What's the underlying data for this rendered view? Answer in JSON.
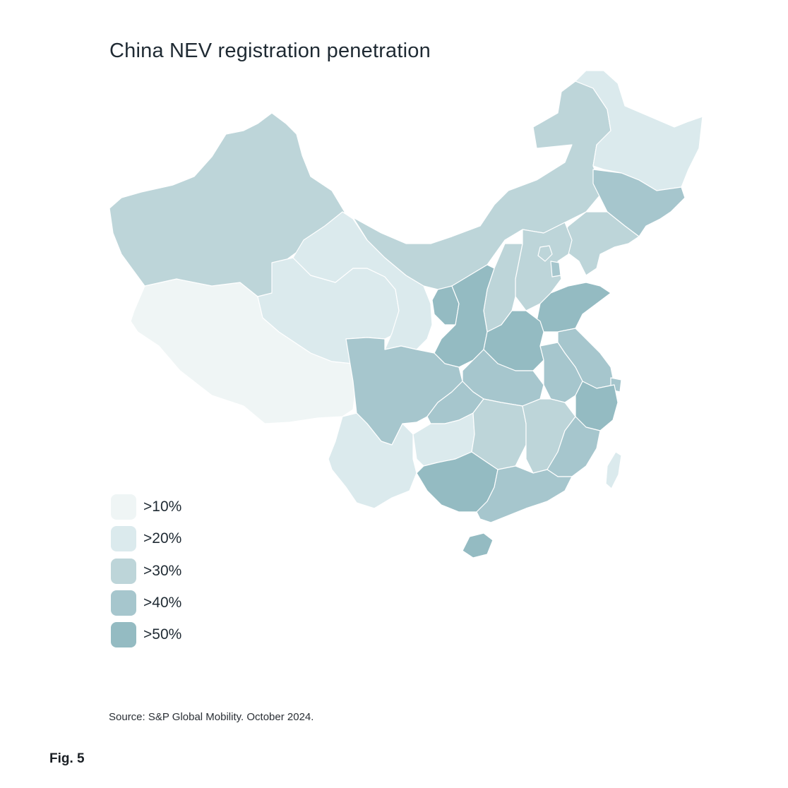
{
  "title": "China NEV registration penetration",
  "legend": [
    {
      "label": ">10%",
      "color": "#eff5f5"
    },
    {
      "label": ">20%",
      "color": "#dbeaed"
    },
    {
      "label": ">30%",
      "color": "#bdd5d9"
    },
    {
      "label": ">40%",
      "color": "#a6c6cd"
    },
    {
      "label": ">50%",
      "color": "#94bbc2"
    }
  ],
  "source": "Source: S&P Global Mobility. October 2024.",
  "figure_label": "Fig. 5",
  "regions": [
    {
      "name": "Xinjiang",
      "level": 3
    },
    {
      "name": "Tibet",
      "level": 1
    },
    {
      "name": "Qinghai",
      "level": 2
    },
    {
      "name": "Gansu",
      "level": 2
    },
    {
      "name": "Inner Mongolia",
      "level": 3
    },
    {
      "name": "Heilongjiang",
      "level": 2
    },
    {
      "name": "Jilin",
      "level": 4
    },
    {
      "name": "Liaoning",
      "level": 3
    },
    {
      "name": "Hebei",
      "level": 3
    },
    {
      "name": "Beijing",
      "level": 3
    },
    {
      "name": "Tianjin",
      "level": 4
    },
    {
      "name": "Shanxi",
      "level": 3
    },
    {
      "name": "Ningxia",
      "level": 5
    },
    {
      "name": "Shaanxi",
      "level": 5
    },
    {
      "name": "Shandong",
      "level": 5
    },
    {
      "name": "Henan",
      "level": 5
    },
    {
      "name": "Jiangsu",
      "level": 4
    },
    {
      "name": "Shanghai",
      "level": 4
    },
    {
      "name": "Anhui",
      "level": 4
    },
    {
      "name": "Hubei",
      "level": 4
    },
    {
      "name": "Sichuan",
      "level": 4
    },
    {
      "name": "Chongqing",
      "level": 4
    },
    {
      "name": "Zhejiang",
      "level": 5
    },
    {
      "name": "Yunnan",
      "level": 2
    },
    {
      "name": "Guizhou",
      "level": 2
    },
    {
      "name": "Hunan",
      "level": 3
    },
    {
      "name": "Jiangxi",
      "level": 3
    },
    {
      "name": "Fujian",
      "level": 4
    },
    {
      "name": "Guangxi",
      "level": 5
    },
    {
      "name": "Guangdong",
      "level": 4
    },
    {
      "name": "Hainan",
      "level": 5
    },
    {
      "name": "Taiwan",
      "level": 2
    }
  ]
}
